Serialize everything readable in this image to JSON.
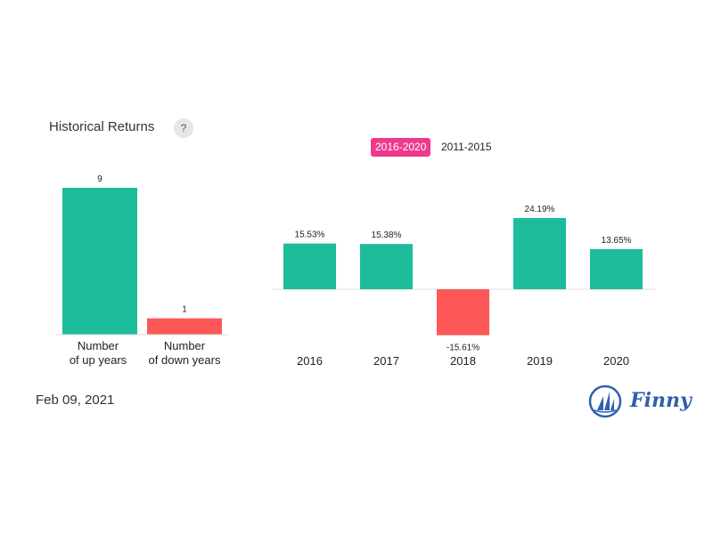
{
  "header": {
    "title": "Historical Returns",
    "help_label": "?"
  },
  "tabs": [
    {
      "label": "2016-2020",
      "active": true
    },
    {
      "label": "2011-2015",
      "active": false
    }
  ],
  "footer": {
    "date": "Feb 09, 2021",
    "brand": "Finny"
  },
  "colors": {
    "positive": "#1dbd9b",
    "negative": "#fe5757",
    "accent": "#ee3a8c",
    "axis": "#dddddd",
    "brand": "#2f5fb0"
  },
  "chart_data": [
    {
      "type": "bar",
      "categories": [
        "Number of up years",
        "Number of down years"
      ],
      "category_lines": [
        [
          "Number",
          "of up years"
        ],
        [
          "Number",
          "of down years"
        ]
      ],
      "values": [
        9,
        1
      ],
      "value_labels": [
        "9",
        "1"
      ],
      "bar_colors": [
        "#1dbd9b",
        "#fe5757"
      ],
      "ylim": [
        0,
        9
      ]
    },
    {
      "type": "bar",
      "categories": [
        "2016",
        "2017",
        "2018",
        "2019",
        "2020"
      ],
      "values": [
        15.53,
        15.38,
        -15.61,
        24.19,
        13.65
      ],
      "value_labels": [
        "15.53%",
        "15.38%",
        "-15.61%",
        "24.19%",
        "13.65%"
      ],
      "ylim": [
        -15.61,
        24.19
      ]
    }
  ]
}
